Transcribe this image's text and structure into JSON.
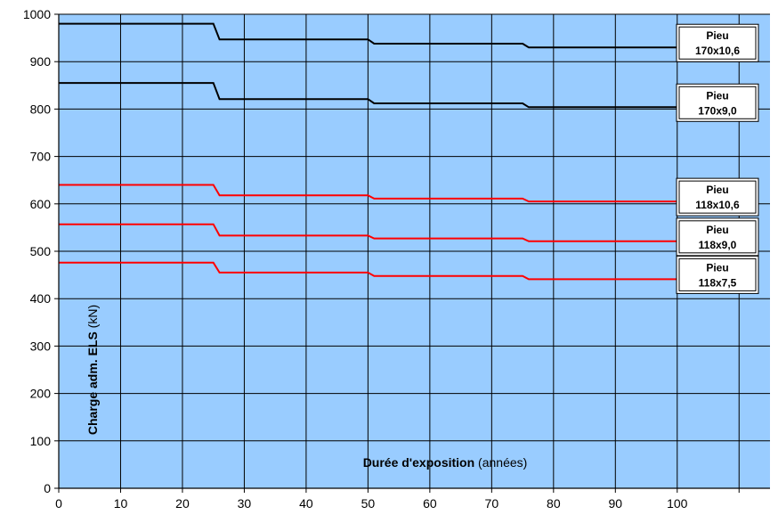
{
  "chart_data": {
    "type": "line",
    "xlabel_bold": "Durée d'exposition",
    "xlabel_rest": " (années)",
    "ylabel_bold": "Charge adm. ELS",
    "ylabel_rest": " (kN)",
    "xlim": [
      0,
      115
    ],
    "ylim": [
      0,
      1000
    ],
    "xticks": [
      0,
      10,
      20,
      30,
      40,
      50,
      60,
      70,
      80,
      90,
      100
    ],
    "yticks": [
      0,
      100,
      200,
      300,
      400,
      500,
      600,
      700,
      800,
      900,
      1000
    ],
    "grid": true,
    "colors": {
      "plot_bg": "#99ccff",
      "black_series": "#000000",
      "red_series": "#ff0000"
    },
    "series": [
      {
        "name": "Pieu 170x10,6",
        "color": "#000000",
        "points": [
          [
            0,
            980
          ],
          [
            25,
            980
          ],
          [
            26,
            947
          ],
          [
            50,
            947
          ],
          [
            51,
            938
          ],
          [
            75,
            938
          ],
          [
            76,
            930
          ],
          [
            100,
            930
          ]
        ]
      },
      {
        "name": "Pieu 170x9,0",
        "color": "#000000",
        "points": [
          [
            0,
            855
          ],
          [
            25,
            855
          ],
          [
            26,
            821
          ],
          [
            50,
            821
          ],
          [
            51,
            812
          ],
          [
            75,
            812
          ],
          [
            76,
            804
          ],
          [
            100,
            804
          ]
        ]
      },
      {
        "name": "Pieu 118x10,6",
        "color": "#ff0000",
        "points": [
          [
            0,
            640
          ],
          [
            25,
            640
          ],
          [
            26,
            618
          ],
          [
            50,
            618
          ],
          [
            51,
            611
          ],
          [
            75,
            611
          ],
          [
            76,
            605
          ],
          [
            100,
            605
          ]
        ]
      },
      {
        "name": "Pieu 118x9,0",
        "color": "#ff0000",
        "points": [
          [
            0,
            557
          ],
          [
            25,
            557
          ],
          [
            26,
            533
          ],
          [
            50,
            533
          ],
          [
            51,
            527
          ],
          [
            75,
            527
          ],
          [
            76,
            521
          ],
          [
            100,
            521
          ]
        ]
      },
      {
        "name": "Pieu 118x7,5",
        "color": "#ff0000",
        "points": [
          [
            0,
            476
          ],
          [
            25,
            476
          ],
          [
            26,
            455
          ],
          [
            50,
            455
          ],
          [
            51,
            448
          ],
          [
            75,
            448
          ],
          [
            76,
            441
          ],
          [
            100,
            441
          ]
        ]
      }
    ],
    "labels": [
      {
        "line1": "Pieu",
        "line2": "170x10,6",
        "series": 0
      },
      {
        "line1": "Pieu",
        "line2": "170x9,0",
        "series": 1
      },
      {
        "line1": "Pieu",
        "line2": "118x10,6",
        "series": 2
      },
      {
        "line1": "Pieu",
        "line2": "118x9,0",
        "series": 3
      },
      {
        "line1": "Pieu",
        "line2": "118x7,5",
        "series": 4
      }
    ]
  }
}
